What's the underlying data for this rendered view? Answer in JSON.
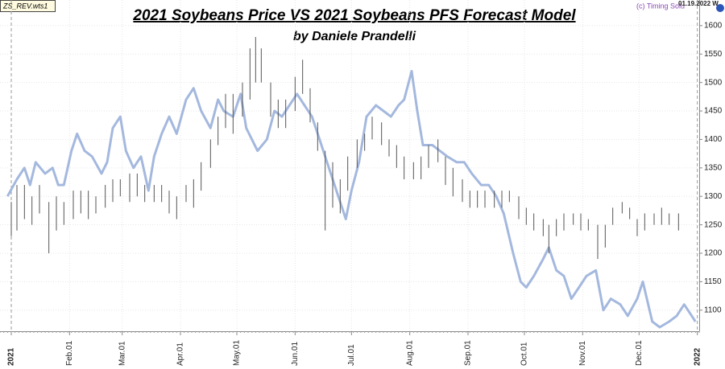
{
  "chart_data": {
    "type": "ohlc",
    "title": "2021 Soybeans Price VS 2021 Soybeans PFS Forecast Model",
    "subtitle": "by Daniele Prandelli",
    "file_label": "ZS_REV.wts1",
    "copyright": "(c) Timing Solu",
    "date_stamp": "01.19.2022 W",
    "xlim": [
      -6,
      366
    ],
    "ylim": [
      1063,
      1645
    ],
    "xticks": [
      {
        "value": 0,
        "label": "2021"
      },
      {
        "value": 31,
        "label": "Feb.01"
      },
      {
        "value": 59,
        "label": "Mar.01"
      },
      {
        "value": 90,
        "label": "Apr.01"
      },
      {
        "value": 120,
        "label": "May.01"
      },
      {
        "value": 151,
        "label": "Jun.01"
      },
      {
        "value": 181,
        "label": "Jul.01"
      },
      {
        "value": 212,
        "label": "Aug.01"
      },
      {
        "value": 243,
        "label": "Sep.01"
      },
      {
        "value": 273,
        "label": "Oct.01"
      },
      {
        "value": 304,
        "label": "Nov.01"
      },
      {
        "value": 334,
        "label": "Dec.01"
      },
      {
        "value": 365,
        "label": "2022"
      }
    ],
    "yticks": [
      1100,
      1150,
      1200,
      1250,
      1300,
      1350,
      1400,
      1450,
      1500,
      1550,
      1600
    ],
    "year_tick_color": "#c00000",
    "grid": true,
    "bars": {
      "color": "#555555",
      "x": [
        0,
        3,
        7,
        11,
        15,
        20,
        24,
        28,
        33,
        37,
        41,
        45,
        50,
        54,
        58,
        63,
        67,
        71,
        76,
        80,
        84,
        88,
        93,
        97,
        101,
        106,
        110,
        114,
        118,
        123,
        127,
        130,
        133,
        138,
        142,
        146,
        151,
        155,
        159,
        163,
        167,
        171,
        175,
        179,
        184,
        188,
        192,
        197,
        201,
        205,
        209,
        214,
        218,
        222,
        227,
        231,
        235,
        240,
        244,
        248,
        252,
        257,
        261,
        265,
        270,
        274,
        278,
        283,
        286,
        290,
        294,
        299,
        303,
        307,
        312,
        316,
        320,
        325,
        329,
        333,
        337,
        342,
        346,
        350,
        355
      ],
      "high": [
        1290,
        1320,
        1320,
        1300,
        1320,
        1290,
        1300,
        1290,
        1310,
        1310,
        1310,
        1300,
        1320,
        1330,
        1330,
        1340,
        1340,
        1320,
        1320,
        1320,
        1310,
        1300,
        1320,
        1330,
        1360,
        1400,
        1440,
        1480,
        1480,
        1500,
        1560,
        1580,
        1560,
        1500,
        1470,
        1470,
        1510,
        1540,
        1490,
        1430,
        1380,
        1360,
        1330,
        1370,
        1400,
        1410,
        1440,
        1430,
        1400,
        1390,
        1370,
        1360,
        1370,
        1390,
        1400,
        1370,
        1350,
        1330,
        1310,
        1310,
        1310,
        1310,
        1310,
        1310,
        1300,
        1280,
        1270,
        1260,
        1250,
        1260,
        1270,
        1270,
        1270,
        1260,
        1250,
        1250,
        1280,
        1290,
        1280,
        1260,
        1270,
        1270,
        1280,
        1270,
        1270
      ],
      "low": [
        1230,
        1240,
        1260,
        1250,
        1270,
        1200,
        1240,
        1250,
        1260,
        1270,
        1260,
        1270,
        1280,
        1290,
        1300,
        1290,
        1300,
        1290,
        1290,
        1290,
        1270,
        1260,
        1290,
        1280,
        1310,
        1350,
        1390,
        1420,
        1410,
        1440,
        1470,
        1500,
        1500,
        1440,
        1420,
        1420,
        1450,
        1480,
        1430,
        1380,
        1240,
        1280,
        1270,
        1310,
        1350,
        1380,
        1400,
        1390,
        1370,
        1350,
        1330,
        1330,
        1330,
        1350,
        1360,
        1320,
        1300,
        1290,
        1280,
        1280,
        1280,
        1280,
        1280,
        1290,
        1260,
        1250,
        1240,
        1230,
        1200,
        1230,
        1240,
        1250,
        1240,
        1240,
        1190,
        1210,
        1250,
        1270,
        1260,
        1230,
        1240,
        1250,
        1250,
        1250,
        1240
      ]
    },
    "forecast": {
      "color": "#a4b8de",
      "x": [
        -2,
        3,
        7,
        10,
        13,
        18,
        22,
        25,
        28,
        32,
        35,
        39,
        43,
        48,
        51,
        54,
        58,
        61,
        65,
        69,
        73,
        76,
        80,
        84,
        88,
        93,
        97,
        101,
        106,
        110,
        113,
        118,
        122,
        125,
        128,
        131,
        136,
        140,
        144,
        148,
        152,
        156,
        160,
        164,
        168,
        172,
        175,
        178,
        181,
        185,
        189,
        194,
        198,
        202,
        206,
        209,
        213,
        216,
        219,
        224,
        228,
        232,
        237,
        241,
        245,
        250,
        254,
        258,
        262,
        267,
        271,
        274,
        278,
        283,
        286,
        290,
        294,
        298,
        302,
        306,
        311,
        315,
        319,
        324,
        328,
        333,
        336,
        341,
        345,
        350,
        354,
        358,
        362,
        364
      ],
      "values": [
        1300,
        1330,
        1350,
        1320,
        1360,
        1340,
        1350,
        1320,
        1320,
        1380,
        1410,
        1380,
        1370,
        1340,
        1360,
        1420,
        1440,
        1380,
        1350,
        1370,
        1310,
        1370,
        1410,
        1440,
        1410,
        1470,
        1490,
        1450,
        1420,
        1470,
        1450,
        1440,
        1480,
        1420,
        1400,
        1380,
        1400,
        1450,
        1440,
        1460,
        1480,
        1460,
        1440,
        1400,
        1360,
        1320,
        1290,
        1260,
        1310,
        1360,
        1440,
        1460,
        1450,
        1440,
        1460,
        1470,
        1520,
        1450,
        1390,
        1390,
        1380,
        1370,
        1360,
        1360,
        1340,
        1320,
        1320,
        1300,
        1270,
        1200,
        1150,
        1140,
        1160,
        1190,
        1210,
        1170,
        1160,
        1120,
        1140,
        1160,
        1170,
        1100,
        1120,
        1110,
        1090,
        1120,
        1150,
        1080,
        1070,
        1080,
        1090,
        1110,
        1090,
        1080
      ]
    }
  }
}
